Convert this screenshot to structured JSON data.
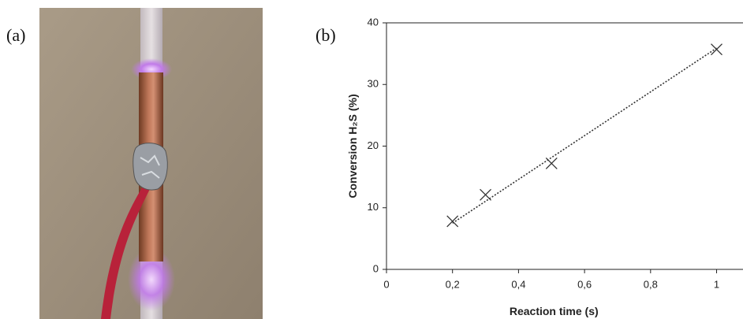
{
  "panels": {
    "a": "(a)",
    "b": "(b)"
  },
  "chart_data": {
    "type": "scatter",
    "x_label": "Reaction time (s)",
    "y_label": "Conversion  H₂S (%)",
    "series": [
      {
        "x": [
          0.2,
          0.3,
          0.5,
          1.0
        ],
        "values": [
          7.8,
          12.1,
          17.2,
          35.7
        ],
        "color": "#333333"
      }
    ],
    "trend": {
      "x": [
        0.2,
        1.0
      ],
      "y": [
        7.5,
        35.9
      ],
      "color": "#333333"
    },
    "xlim": [
      0,
      1.08
    ],
    "ylim": [
      0,
      40
    ],
    "xticks": [
      0,
      {
        "value": 0.2,
        "label": "0,2"
      },
      {
        "value": 0.4,
        "label": "0,4"
      },
      {
        "value": 0.6,
        "label": "0,6"
      },
      {
        "value": 0.8,
        "label": "0,8"
      },
      1
    ],
    "yticks": [
      0,
      10,
      20,
      30,
      40
    ]
  }
}
